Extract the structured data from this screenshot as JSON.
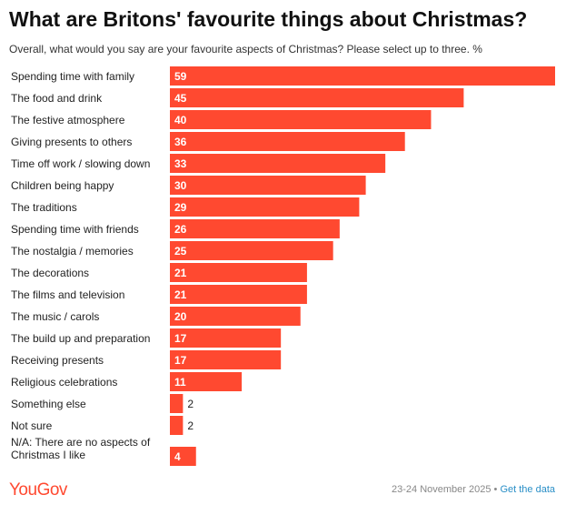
{
  "header": {
    "title": "What are Britons' favourite things about Christmas?",
    "subtitle": "Overall, what would you say are your favourite aspects of Christmas? Please select up to three. %"
  },
  "footer": {
    "logo": "YouGov",
    "date": "23-24 November 2025",
    "separator": "•",
    "link": "Get the data"
  },
  "colors": {
    "bar": "#ff4930",
    "bar_label_inside": "#ffffff",
    "bar_label_outside": "#222222"
  },
  "chart_data": {
    "type": "bar",
    "orientation": "horizontal",
    "categories": [
      "Spending time with family",
      "The food and drink",
      "The festive atmosphere",
      "Giving presents to others",
      "Time off work / slowing down",
      "Children being happy",
      "The traditions",
      "Spending time with friends",
      "The nostalgia / memories",
      "The decorations",
      "The films and television",
      "The music / carols",
      "The build up and preparation",
      "Receiving presents",
      "Religious celebrations",
      "Something else",
      "Not sure",
      "N/A: There are no aspects of Christmas I like"
    ],
    "values": [
      59,
      45,
      40,
      36,
      33,
      30,
      29,
      26,
      25,
      21,
      21,
      20,
      17,
      17,
      11,
      2,
      2,
      4
    ],
    "title": "What are Britons' favourite things about Christmas?",
    "xlabel": "",
    "ylabel": "",
    "xlim": [
      0,
      59
    ],
    "grid": false,
    "legend": "none"
  }
}
